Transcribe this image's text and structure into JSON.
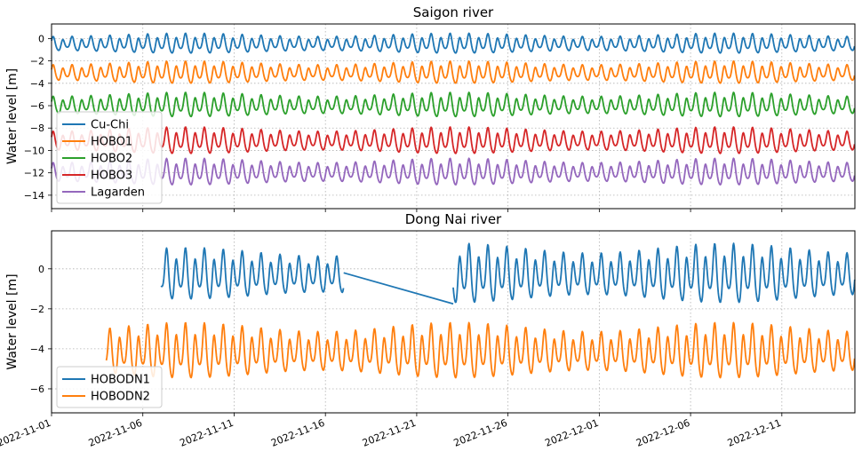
{
  "chart_data": [
    {
      "type": "line",
      "title": "Saigon river",
      "ylabel": "Water level [m]",
      "xlabel": "",
      "ylim": [
        -15.2,
        1.3
      ],
      "yticks": [
        0,
        -2,
        -4,
        -6,
        -8,
        -10,
        -12,
        -14
      ],
      "ytick_labels": [
        "0",
        "−2",
        "−4",
        "−6",
        "−8",
        "−10",
        "−12",
        "−14"
      ],
      "x_date_range": [
        "2022-11-01",
        "2022-12-15"
      ],
      "x_tick_labels_shown": false,
      "grid": true,
      "legend_position": "lower-left",
      "series": [
        {
          "name": "Cu-Chi",
          "color": "#1f77b4",
          "start": "2022-11-01",
          "end": "2022-12-15",
          "mean": -0.5,
          "amplitude": 0.9,
          "notes": "semi-diurnal tide"
        },
        {
          "name": "HOBO1",
          "color": "#ff7f0e",
          "start": "2022-11-01",
          "end": "2022-12-15",
          "mean": -3.1,
          "amplitude": 1.0
        },
        {
          "name": "HOBO2",
          "color": "#2ca02c",
          "start": "2022-11-01",
          "end": "2022-12-15",
          "mean": -6.0,
          "amplitude": 1.1
        },
        {
          "name": "HOBO3",
          "color": "#d62728",
          "start": "2022-11-01",
          "end": "2022-12-15",
          "mean": -9.2,
          "amplitude": 1.2
        },
        {
          "name": "Lagarden",
          "color": "#9467bd",
          "start": "2022-11-01",
          "end": "2022-12-15",
          "mean": -12.0,
          "amplitude": 1.2
        }
      ]
    },
    {
      "type": "line",
      "title": "Dong Nai river",
      "ylabel": "Water level [m]",
      "xlabel": "",
      "ylim": [
        -7.2,
        1.9
      ],
      "yticks": [
        0,
        -2,
        -4,
        -6
      ],
      "ytick_labels": [
        "0",
        "−2",
        "−4",
        "−6"
      ],
      "x_date_range": [
        "2022-11-01",
        "2022-12-15"
      ],
      "x_tick_labels": [
        "2022-11-01",
        "2022-11-06",
        "2022-11-11",
        "2022-11-16",
        "2022-11-21",
        "2022-11-26",
        "2022-12-01",
        "2022-12-06",
        "2022-12-11"
      ],
      "grid": true,
      "legend_position": "lower-left",
      "series": [
        {
          "name": "HOBODN1",
          "color": "#1f77b4",
          "segments": [
            {
              "start": "2022-11-07",
              "end": "2022-11-17",
              "mean": -0.35,
              "amplitude": 1.3
            },
            {
              "start": "2022-11-23",
              "end": "2022-12-15",
              "mean": -0.35,
              "amplitude": 1.5
            }
          ],
          "gap_line": [
            [
              "2022-11-17",
              -0.2
            ],
            [
              "2022-11-23",
              -1.75
            ]
          ]
        },
        {
          "name": "HOBODN2",
          "color": "#ff7f0e",
          "start": "2022-11-04",
          "end": "2022-12-15",
          "mean": -4.2,
          "amplitude": 1.4
        }
      ]
    }
  ]
}
